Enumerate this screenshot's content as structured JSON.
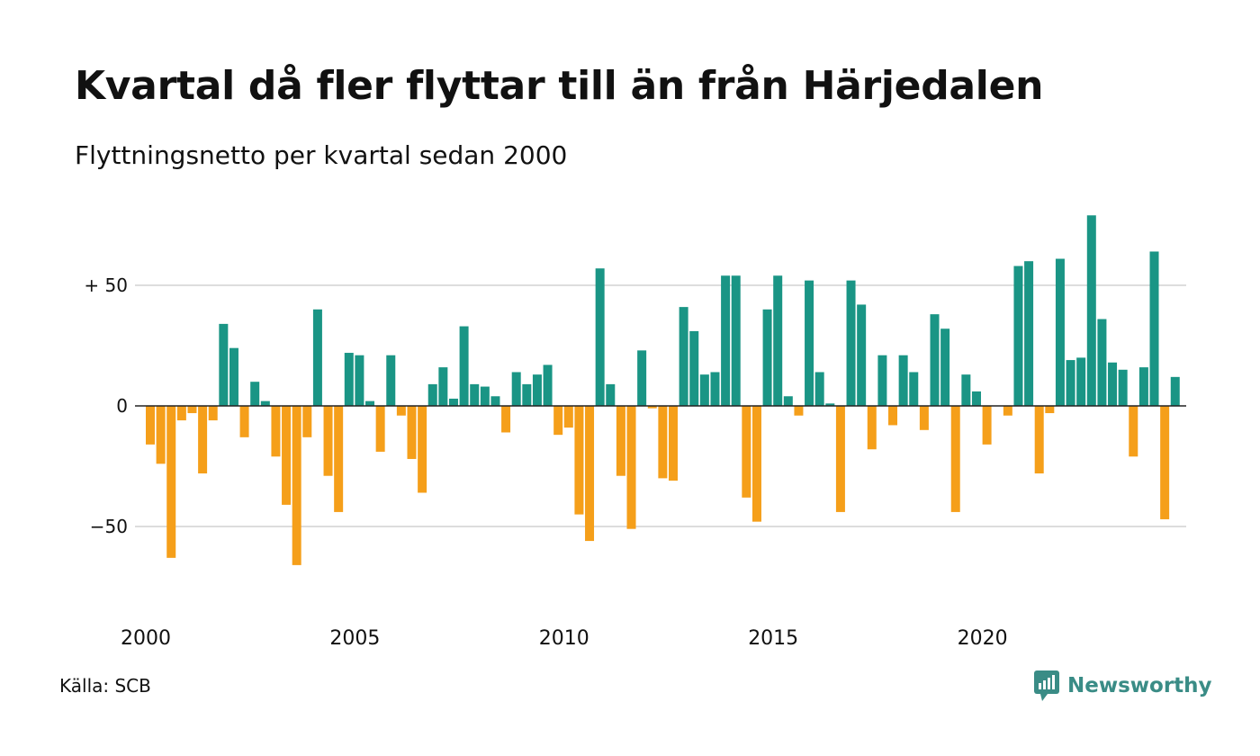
{
  "title": "Kvartal då fler flyttar till än från Härjedalen",
  "subtitle": "Flyttningsnetto per kvartal sedan 2000",
  "source": "Källa: SCB",
  "brand": "Newsworthy",
  "colors": {
    "positive": "#1a9585",
    "negative": "#f59f1a",
    "grid": "#dddddd",
    "axis": "#222222",
    "brand": "#3a8c86"
  },
  "chart_data": {
    "type": "bar",
    "title": "Kvartal då fler flyttar till än från Härjedalen",
    "subtitle": "Flyttningsnetto per kvartal sedan 2000",
    "xlabel": "",
    "ylabel": "",
    "ylim": [
      -75,
      80
    ],
    "y_ticks": [
      {
        "value": 50,
        "label": "+ 50"
      },
      {
        "value": 0,
        "label": "0"
      },
      {
        "value": -50,
        "label": "−50"
      }
    ],
    "x_ticks": [
      "2000",
      "2005",
      "2010",
      "2015",
      "2020"
    ],
    "start_year": 2000,
    "grid": true,
    "legend": "none",
    "categories": [
      "2000 Q1",
      "2000 Q2",
      "2000 Q3",
      "2000 Q4",
      "2001 Q1",
      "2001 Q2",
      "2001 Q3",
      "2001 Q4",
      "2002 Q1",
      "2002 Q2",
      "2002 Q3",
      "2002 Q4",
      "2003 Q1",
      "2003 Q2",
      "2003 Q3",
      "2003 Q4",
      "2004 Q1",
      "2004 Q2",
      "2004 Q3",
      "2004 Q4",
      "2005 Q1",
      "2005 Q2",
      "2005 Q3",
      "2005 Q4",
      "2006 Q1",
      "2006 Q2",
      "2006 Q3",
      "2006 Q4",
      "2007 Q1",
      "2007 Q2",
      "2007 Q3",
      "2007 Q4",
      "2008 Q1",
      "2008 Q2",
      "2008 Q3",
      "2008 Q4",
      "2009 Q1",
      "2009 Q2",
      "2009 Q3",
      "2009 Q4",
      "2010 Q1",
      "2010 Q2",
      "2010 Q3",
      "2010 Q4",
      "2011 Q1",
      "2011 Q2",
      "2011 Q3",
      "2011 Q4",
      "2012 Q1",
      "2012 Q2",
      "2012 Q3",
      "2012 Q4",
      "2013 Q1",
      "2013 Q2",
      "2013 Q3",
      "2013 Q4",
      "2014 Q1",
      "2014 Q2",
      "2014 Q3",
      "2014 Q4",
      "2015 Q1",
      "2015 Q2",
      "2015 Q3",
      "2015 Q4",
      "2016 Q1",
      "2016 Q2",
      "2016 Q3",
      "2016 Q4",
      "2017 Q1",
      "2017 Q2",
      "2017 Q3",
      "2017 Q4",
      "2018 Q1",
      "2018 Q2",
      "2018 Q3",
      "2018 Q4",
      "2019 Q1",
      "2019 Q2",
      "2019 Q3",
      "2019 Q4",
      "2020 Q1",
      "2020 Q2",
      "2020 Q3",
      "2020 Q4",
      "2021 Q1",
      "2021 Q2",
      "2021 Q3",
      "2021 Q4",
      "2022 Q1",
      "2022 Q2",
      "2022 Q3",
      "2022 Q4",
      "2023 Q1",
      "2023 Q2",
      "2023 Q3",
      "2023 Q4",
      "2024 Q1",
      "2024 Q2",
      "2024 Q3",
      "2024 Q4"
    ],
    "values": [
      -16,
      -24,
      -63,
      -6,
      -3,
      -28,
      -6,
      34,
      24,
      -13,
      10,
      2,
      -21,
      -41,
      -66,
      -13,
      40,
      -29,
      -44,
      22,
      21,
      2,
      -19,
      21,
      -4,
      -22,
      -36,
      9,
      16,
      3,
      33,
      9,
      8,
      4,
      -11,
      14,
      9,
      13,
      17,
      -12,
      -9,
      -45,
      -56,
      57,
      9,
      -29,
      -51,
      23,
      -1,
      -30,
      -31,
      41,
      31,
      13,
      14,
      54,
      54,
      -38,
      -48,
      40,
      54,
      4,
      -4,
      52,
      14,
      1,
      -44,
      52,
      42,
      -18,
      21,
      -8,
      21,
      14,
      -10,
      38,
      32,
      -44,
      13,
      6,
      -16,
      0,
      -4,
      58,
      60,
      -28,
      -3,
      61,
      19,
      20,
      79,
      36,
      18,
      15,
      -21,
      16,
      64,
      -47,
      12,
      0
    ]
  }
}
